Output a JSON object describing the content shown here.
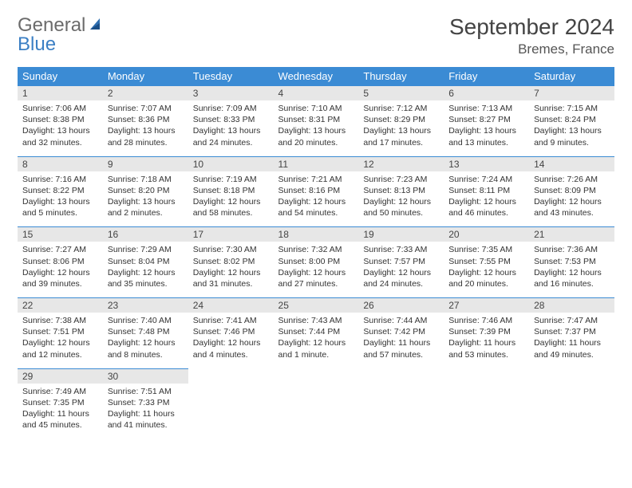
{
  "logo": {
    "word1": "General",
    "word2": "Blue"
  },
  "title": "September 2024",
  "location": "Bremes, France",
  "colors": {
    "header_bg": "#3b8bd4",
    "header_fg": "#ffffff",
    "numrow_bg": "#e7e7e7",
    "row_border": "#3b8bd4",
    "logo_gray": "#6b6b6b",
    "logo_blue": "#3b7fc4"
  },
  "daynames": [
    "Sunday",
    "Monday",
    "Tuesday",
    "Wednesday",
    "Thursday",
    "Friday",
    "Saturday"
  ],
  "weeks": [
    [
      {
        "n": "1",
        "sr": "Sunrise: 7:06 AM",
        "ss": "Sunset: 8:38 PM",
        "dl": "Daylight: 13 hours and 32 minutes."
      },
      {
        "n": "2",
        "sr": "Sunrise: 7:07 AM",
        "ss": "Sunset: 8:36 PM",
        "dl": "Daylight: 13 hours and 28 minutes."
      },
      {
        "n": "3",
        "sr": "Sunrise: 7:09 AM",
        "ss": "Sunset: 8:33 PM",
        "dl": "Daylight: 13 hours and 24 minutes."
      },
      {
        "n": "4",
        "sr": "Sunrise: 7:10 AM",
        "ss": "Sunset: 8:31 PM",
        "dl": "Daylight: 13 hours and 20 minutes."
      },
      {
        "n": "5",
        "sr": "Sunrise: 7:12 AM",
        "ss": "Sunset: 8:29 PM",
        "dl": "Daylight: 13 hours and 17 minutes."
      },
      {
        "n": "6",
        "sr": "Sunrise: 7:13 AM",
        "ss": "Sunset: 8:27 PM",
        "dl": "Daylight: 13 hours and 13 minutes."
      },
      {
        "n": "7",
        "sr": "Sunrise: 7:15 AM",
        "ss": "Sunset: 8:24 PM",
        "dl": "Daylight: 13 hours and 9 minutes."
      }
    ],
    [
      {
        "n": "8",
        "sr": "Sunrise: 7:16 AM",
        "ss": "Sunset: 8:22 PM",
        "dl": "Daylight: 13 hours and 5 minutes."
      },
      {
        "n": "9",
        "sr": "Sunrise: 7:18 AM",
        "ss": "Sunset: 8:20 PM",
        "dl": "Daylight: 13 hours and 2 minutes."
      },
      {
        "n": "10",
        "sr": "Sunrise: 7:19 AM",
        "ss": "Sunset: 8:18 PM",
        "dl": "Daylight: 12 hours and 58 minutes."
      },
      {
        "n": "11",
        "sr": "Sunrise: 7:21 AM",
        "ss": "Sunset: 8:16 PM",
        "dl": "Daylight: 12 hours and 54 minutes."
      },
      {
        "n": "12",
        "sr": "Sunrise: 7:23 AM",
        "ss": "Sunset: 8:13 PM",
        "dl": "Daylight: 12 hours and 50 minutes."
      },
      {
        "n": "13",
        "sr": "Sunrise: 7:24 AM",
        "ss": "Sunset: 8:11 PM",
        "dl": "Daylight: 12 hours and 46 minutes."
      },
      {
        "n": "14",
        "sr": "Sunrise: 7:26 AM",
        "ss": "Sunset: 8:09 PM",
        "dl": "Daylight: 12 hours and 43 minutes."
      }
    ],
    [
      {
        "n": "15",
        "sr": "Sunrise: 7:27 AM",
        "ss": "Sunset: 8:06 PM",
        "dl": "Daylight: 12 hours and 39 minutes."
      },
      {
        "n": "16",
        "sr": "Sunrise: 7:29 AM",
        "ss": "Sunset: 8:04 PM",
        "dl": "Daylight: 12 hours and 35 minutes."
      },
      {
        "n": "17",
        "sr": "Sunrise: 7:30 AM",
        "ss": "Sunset: 8:02 PM",
        "dl": "Daylight: 12 hours and 31 minutes."
      },
      {
        "n": "18",
        "sr": "Sunrise: 7:32 AM",
        "ss": "Sunset: 8:00 PM",
        "dl": "Daylight: 12 hours and 27 minutes."
      },
      {
        "n": "19",
        "sr": "Sunrise: 7:33 AM",
        "ss": "Sunset: 7:57 PM",
        "dl": "Daylight: 12 hours and 24 minutes."
      },
      {
        "n": "20",
        "sr": "Sunrise: 7:35 AM",
        "ss": "Sunset: 7:55 PM",
        "dl": "Daylight: 12 hours and 20 minutes."
      },
      {
        "n": "21",
        "sr": "Sunrise: 7:36 AM",
        "ss": "Sunset: 7:53 PM",
        "dl": "Daylight: 12 hours and 16 minutes."
      }
    ],
    [
      {
        "n": "22",
        "sr": "Sunrise: 7:38 AM",
        "ss": "Sunset: 7:51 PM",
        "dl": "Daylight: 12 hours and 12 minutes."
      },
      {
        "n": "23",
        "sr": "Sunrise: 7:40 AM",
        "ss": "Sunset: 7:48 PM",
        "dl": "Daylight: 12 hours and 8 minutes."
      },
      {
        "n": "24",
        "sr": "Sunrise: 7:41 AM",
        "ss": "Sunset: 7:46 PM",
        "dl": "Daylight: 12 hours and 4 minutes."
      },
      {
        "n": "25",
        "sr": "Sunrise: 7:43 AM",
        "ss": "Sunset: 7:44 PM",
        "dl": "Daylight: 12 hours and 1 minute."
      },
      {
        "n": "26",
        "sr": "Sunrise: 7:44 AM",
        "ss": "Sunset: 7:42 PM",
        "dl": "Daylight: 11 hours and 57 minutes."
      },
      {
        "n": "27",
        "sr": "Sunrise: 7:46 AM",
        "ss": "Sunset: 7:39 PM",
        "dl": "Daylight: 11 hours and 53 minutes."
      },
      {
        "n": "28",
        "sr": "Sunrise: 7:47 AM",
        "ss": "Sunset: 7:37 PM",
        "dl": "Daylight: 11 hours and 49 minutes."
      }
    ],
    [
      {
        "n": "29",
        "sr": "Sunrise: 7:49 AM",
        "ss": "Sunset: 7:35 PM",
        "dl": "Daylight: 11 hours and 45 minutes."
      },
      {
        "n": "30",
        "sr": "Sunrise: 7:51 AM",
        "ss": "Sunset: 7:33 PM",
        "dl": "Daylight: 11 hours and 41 minutes."
      },
      null,
      null,
      null,
      null,
      null
    ]
  ]
}
